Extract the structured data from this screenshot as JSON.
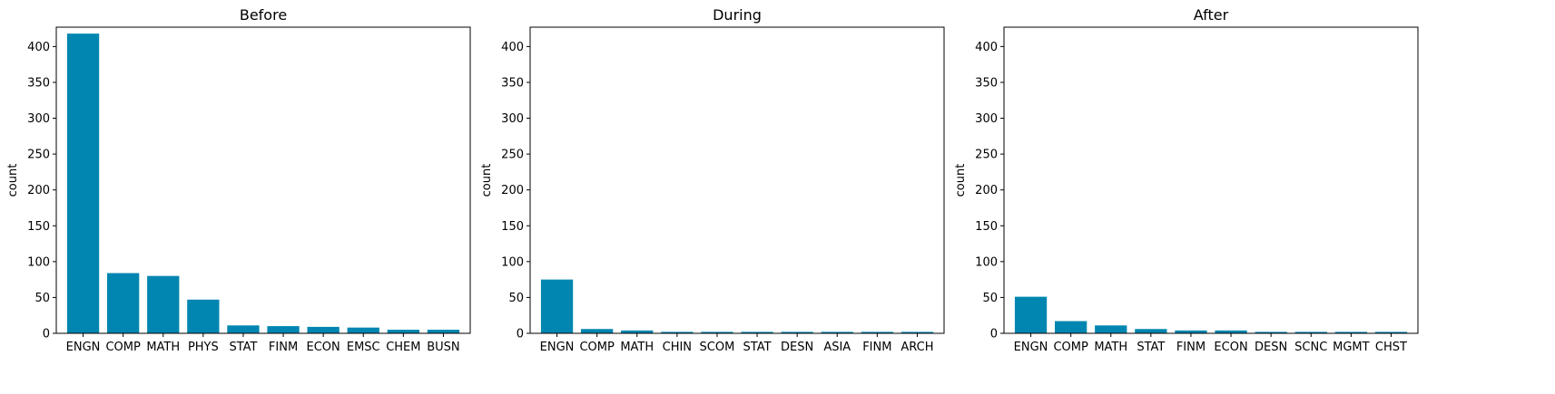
{
  "colors": {
    "bar": "#0086b0",
    "axis": "#000000",
    "background": "#ffffff"
  },
  "chart_data": [
    {
      "type": "bar",
      "title": "Before",
      "xlabel": "",
      "ylabel": "count",
      "ylim": [
        0,
        427
      ],
      "yticks": [
        0,
        50,
        100,
        150,
        200,
        250,
        300,
        350,
        400
      ],
      "grid": false,
      "categories": [
        "ENGN",
        "COMP",
        "MATH",
        "PHYS",
        "STAT",
        "FINM",
        "ECON",
        "EMSC",
        "CHEM",
        "BUSN"
      ],
      "values": [
        418,
        84,
        80,
        47,
        11,
        10,
        9,
        8,
        5,
        5
      ]
    },
    {
      "type": "bar",
      "title": "During",
      "xlabel": "",
      "ylabel": "count",
      "ylim": [
        0,
        427
      ],
      "yticks": [
        0,
        50,
        100,
        150,
        200,
        250,
        300,
        350,
        400
      ],
      "grid": false,
      "categories": [
        "ENGN",
        "COMP",
        "MATH",
        "CHIN",
        "SCOM",
        "STAT",
        "DESN",
        "ASIA",
        "FINM",
        "ARCH"
      ],
      "values": [
        75,
        6,
        4,
        2,
        2,
        2,
        2,
        2,
        2,
        2
      ]
    },
    {
      "type": "bar",
      "title": "After",
      "xlabel": "",
      "ylabel": "count",
      "ylim": [
        0,
        427
      ],
      "yticks": [
        0,
        50,
        100,
        150,
        200,
        250,
        300,
        350,
        400
      ],
      "grid": false,
      "categories": [
        "ENGN",
        "COMP",
        "MATH",
        "STAT",
        "FINM",
        "ECON",
        "DESN",
        "SCNC",
        "MGMT",
        "CHST"
      ],
      "values": [
        51,
        17,
        11,
        6,
        4,
        4,
        2,
        2,
        2,
        2
      ]
    }
  ]
}
